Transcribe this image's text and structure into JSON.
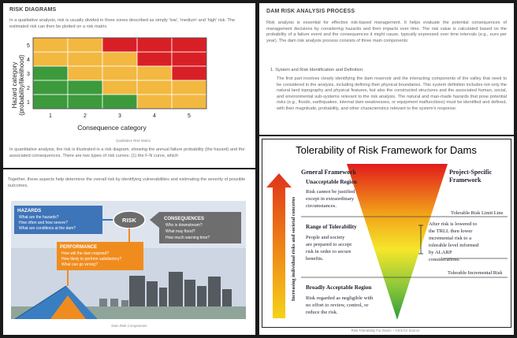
{
  "risk_diagrams": {
    "heading": "RISK DIAGRAMS",
    "intro": "In a qualitative analysis, risk is usually divided in three zones described as simply 'low', 'medium' and 'high' risk. The estimated risk can then be plotted on a risk matrix.",
    "matrix": {
      "x_ticks": [
        "1",
        "2",
        "3",
        "4",
        "5"
      ],
      "y_ticks": [
        "1",
        "2",
        "3",
        "4",
        "5"
      ],
      "xlabel": "Consequence category",
      "ylabel_line1": "Hazard category",
      "ylabel_line2": "(probability/likelihood)",
      "zone_colors": {
        "low": "#3c9a3c",
        "medium": "#f2b840",
        "high": "#d91f26"
      },
      "rows_top_to_bottom": [
        [
          "medium",
          "medium",
          "high",
          "high",
          "high"
        ],
        [
          "medium",
          "medium",
          "medium",
          "high",
          "high"
        ],
        [
          "low",
          "medium",
          "medium",
          "medium",
          "high"
        ],
        [
          "low",
          "low",
          "medium",
          "medium",
          "medium"
        ],
        [
          "low",
          "low",
          "low",
          "medium",
          "medium"
        ]
      ]
    },
    "caption": "Qualitative Risk Matrix",
    "outro": "In quantitative analysis, the risk is illustrated in a risk diagram, showing the annual failure probability (the hazard) and the associated consequences. There are two types of risk curves: (1) the F-N curve, which"
  },
  "components": {
    "intro": "Together, these aspects help determine the overall risk by identifying vulnerabilities and estimating the severity of possible outcomes.",
    "hazards_title": "HAZARDS",
    "hazards_items": [
      "What are the hazards?",
      "How often and how severe?",
      "What are conditions at the dam?"
    ],
    "risk_label": "RISK",
    "consequences_title": "CONSEQUENCES",
    "consequences_items": [
      "Who is downstream?",
      "What may flood?",
      "How much warning time?"
    ],
    "performance_title": "PERFORMANCE",
    "performance_items": [
      "How will the dam respond?",
      "How likely to perform satisfactory?",
      "What can go wrong?"
    ],
    "caption": "Dam Risk Components",
    "colors": {
      "hazards": "#3e74b8",
      "performance": "#f08c1e",
      "consequences": "#707070",
      "bg": "#cfd8e3"
    }
  },
  "process": {
    "heading": "DAM RISK ANALYSIS PROCESS",
    "intro": "Risk analysis is essential for effective risk-based management. It helps evaluate the potential consequences of management decisions by considering hazards and their impacts over time. The risk value is calculated based on the probability of a failure event and the consequences it might cause, typically expressed over time intervals (e.g., euro per year). The dam risk analysis process consists of three main components:",
    "step_title": "1. System and Risk Identification and Definition:",
    "step_text": "The first part involves clearly identifying the dam reservoir and the interacting components of the valley that need to be considered in the analysis, including defining their physical boundaries. This system definition includes not only the natural land topography and physical features, but also the constructed structures and the associated human, social, and environmental sub-systems relevant to the risk analysis. The natural and man-made hazards that pose potential risks (e.g., floods, earthquakes, internal dam weaknesses, or equipment malfunctions) must be identified and defined, with their magnitude, probability, and other characteristics relevant to the system's response."
  },
  "tolerability": {
    "title": "Tolerability of Risk Framework for Dams",
    "general_framework": "General Framework",
    "project_specific": [
      "Project-Specific",
      "Framework"
    ],
    "vertical_label": "Increasing individual risks and societal concerns",
    "unacceptable_title": "Unacceptable Region",
    "unacceptable_text": [
      "Risk cannot be justified",
      "except in extraordinary",
      "circumstances."
    ],
    "tolerability_title": "Range of Tolerability",
    "tolerability_text": [
      "People and society",
      "are prepared to accept",
      "risk in order to secure",
      "benefits."
    ],
    "acceptable_title": "Broadly Acceptable Region",
    "acceptable_text": [
      "Risk regarded as negligible with",
      "no effort to review, control, or",
      "reduce the risk."
    ],
    "limit_line": "Tolerable Risk Limit Line",
    "alarp_text": [
      "After risk is lowered to",
      "the TRLL then lower",
      "incremental risk to a",
      "tolerable level informed",
      "by ALARP",
      "considerations."
    ],
    "incremental": "Tolerable Incremental Risk",
    "caption": "Risk Tolerability For Dams – Click for Source"
  }
}
